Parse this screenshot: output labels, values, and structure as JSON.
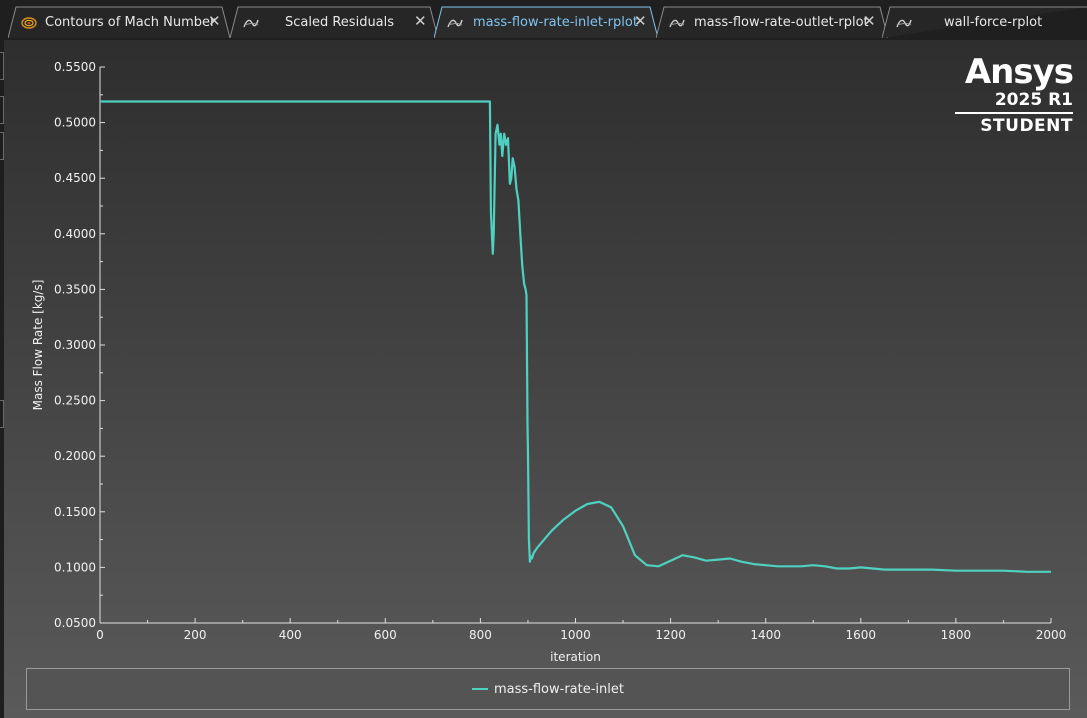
{
  "tabs": [
    {
      "label": "Contours of Mach Number",
      "icon": "contour-icon",
      "active": false
    },
    {
      "label": "Scaled Residuals",
      "icon": "plot-icon",
      "active": false
    },
    {
      "label": "mass-flow-rate-inlet-rplot",
      "icon": "plot-icon",
      "active": true
    },
    {
      "label": "mass-flow-rate-outlet-rplot",
      "icon": "plot-icon",
      "active": false
    },
    {
      "label": "wall-force-rplot",
      "icon": "plot-icon",
      "active": false
    }
  ],
  "close_glyph": "✕",
  "watermark": {
    "brand": "Ansys",
    "version": "2025 R1",
    "edition": "STUDENT"
  },
  "colors": {
    "series": "#4fd1c1",
    "active_tab_text": "#7fc4f0",
    "background_top": "#2e2e2e",
    "background_bottom": "#5a5a5a"
  },
  "chart_data": {
    "type": "line",
    "xlabel": "iteration",
    "ylabel": "Mass Flow Rate [kg/s]",
    "xlim": [
      0,
      2000
    ],
    "ylim": [
      0.05,
      0.55
    ],
    "x_ticks": [
      "0",
      "200",
      "400",
      "600",
      "800",
      "1000",
      "1200",
      "1400",
      "1600",
      "1800",
      "2000"
    ],
    "y_ticks": [
      "0.0500",
      "0.1000",
      "0.1500",
      "0.2000",
      "0.2500",
      "0.3000",
      "0.3500",
      "0.4000",
      "0.4500",
      "0.5000",
      "0.5500"
    ],
    "grid": false,
    "legend_position": "bottom",
    "series": [
      {
        "name": "mass-flow-rate-inlet",
        "x": [
          0,
          820,
          822,
          826,
          828,
          832,
          836,
          840,
          843,
          846,
          850,
          854,
          858,
          862,
          865,
          868,
          872,
          876,
          880,
          884,
          888,
          892,
          895,
          897,
          899,
          900,
          902,
          904,
          906,
          908,
          912,
          920,
          930,
          950,
          975,
          1000,
          1025,
          1050,
          1075,
          1100,
          1125,
          1150,
          1175,
          1200,
          1225,
          1250,
          1275,
          1300,
          1325,
          1350,
          1375,
          1400,
          1425,
          1450,
          1475,
          1500,
          1525,
          1550,
          1575,
          1600,
          1625,
          1650,
          1675,
          1700,
          1750,
          1800,
          1850,
          1900,
          1950,
          2000
        ],
        "y": [
          0.519,
          0.519,
          0.42,
          0.382,
          0.4,
          0.49,
          0.498,
          0.48,
          0.49,
          0.47,
          0.49,
          0.48,
          0.486,
          0.445,
          0.45,
          0.468,
          0.46,
          0.44,
          0.43,
          0.4,
          0.372,
          0.355,
          0.35,
          0.345,
          0.23,
          0.2,
          0.125,
          0.105,
          0.11,
          0.108,
          0.113,
          0.118,
          0.123,
          0.133,
          0.143,
          0.151,
          0.157,
          0.159,
          0.154,
          0.137,
          0.111,
          0.102,
          0.101,
          0.106,
          0.111,
          0.109,
          0.106,
          0.107,
          0.108,
          0.105,
          0.103,
          0.102,
          0.101,
          0.101,
          0.101,
          0.102,
          0.101,
          0.099,
          0.099,
          0.1,
          0.099,
          0.098,
          0.098,
          0.098,
          0.098,
          0.097,
          0.097,
          0.097,
          0.096,
          0.096
        ]
      }
    ]
  }
}
